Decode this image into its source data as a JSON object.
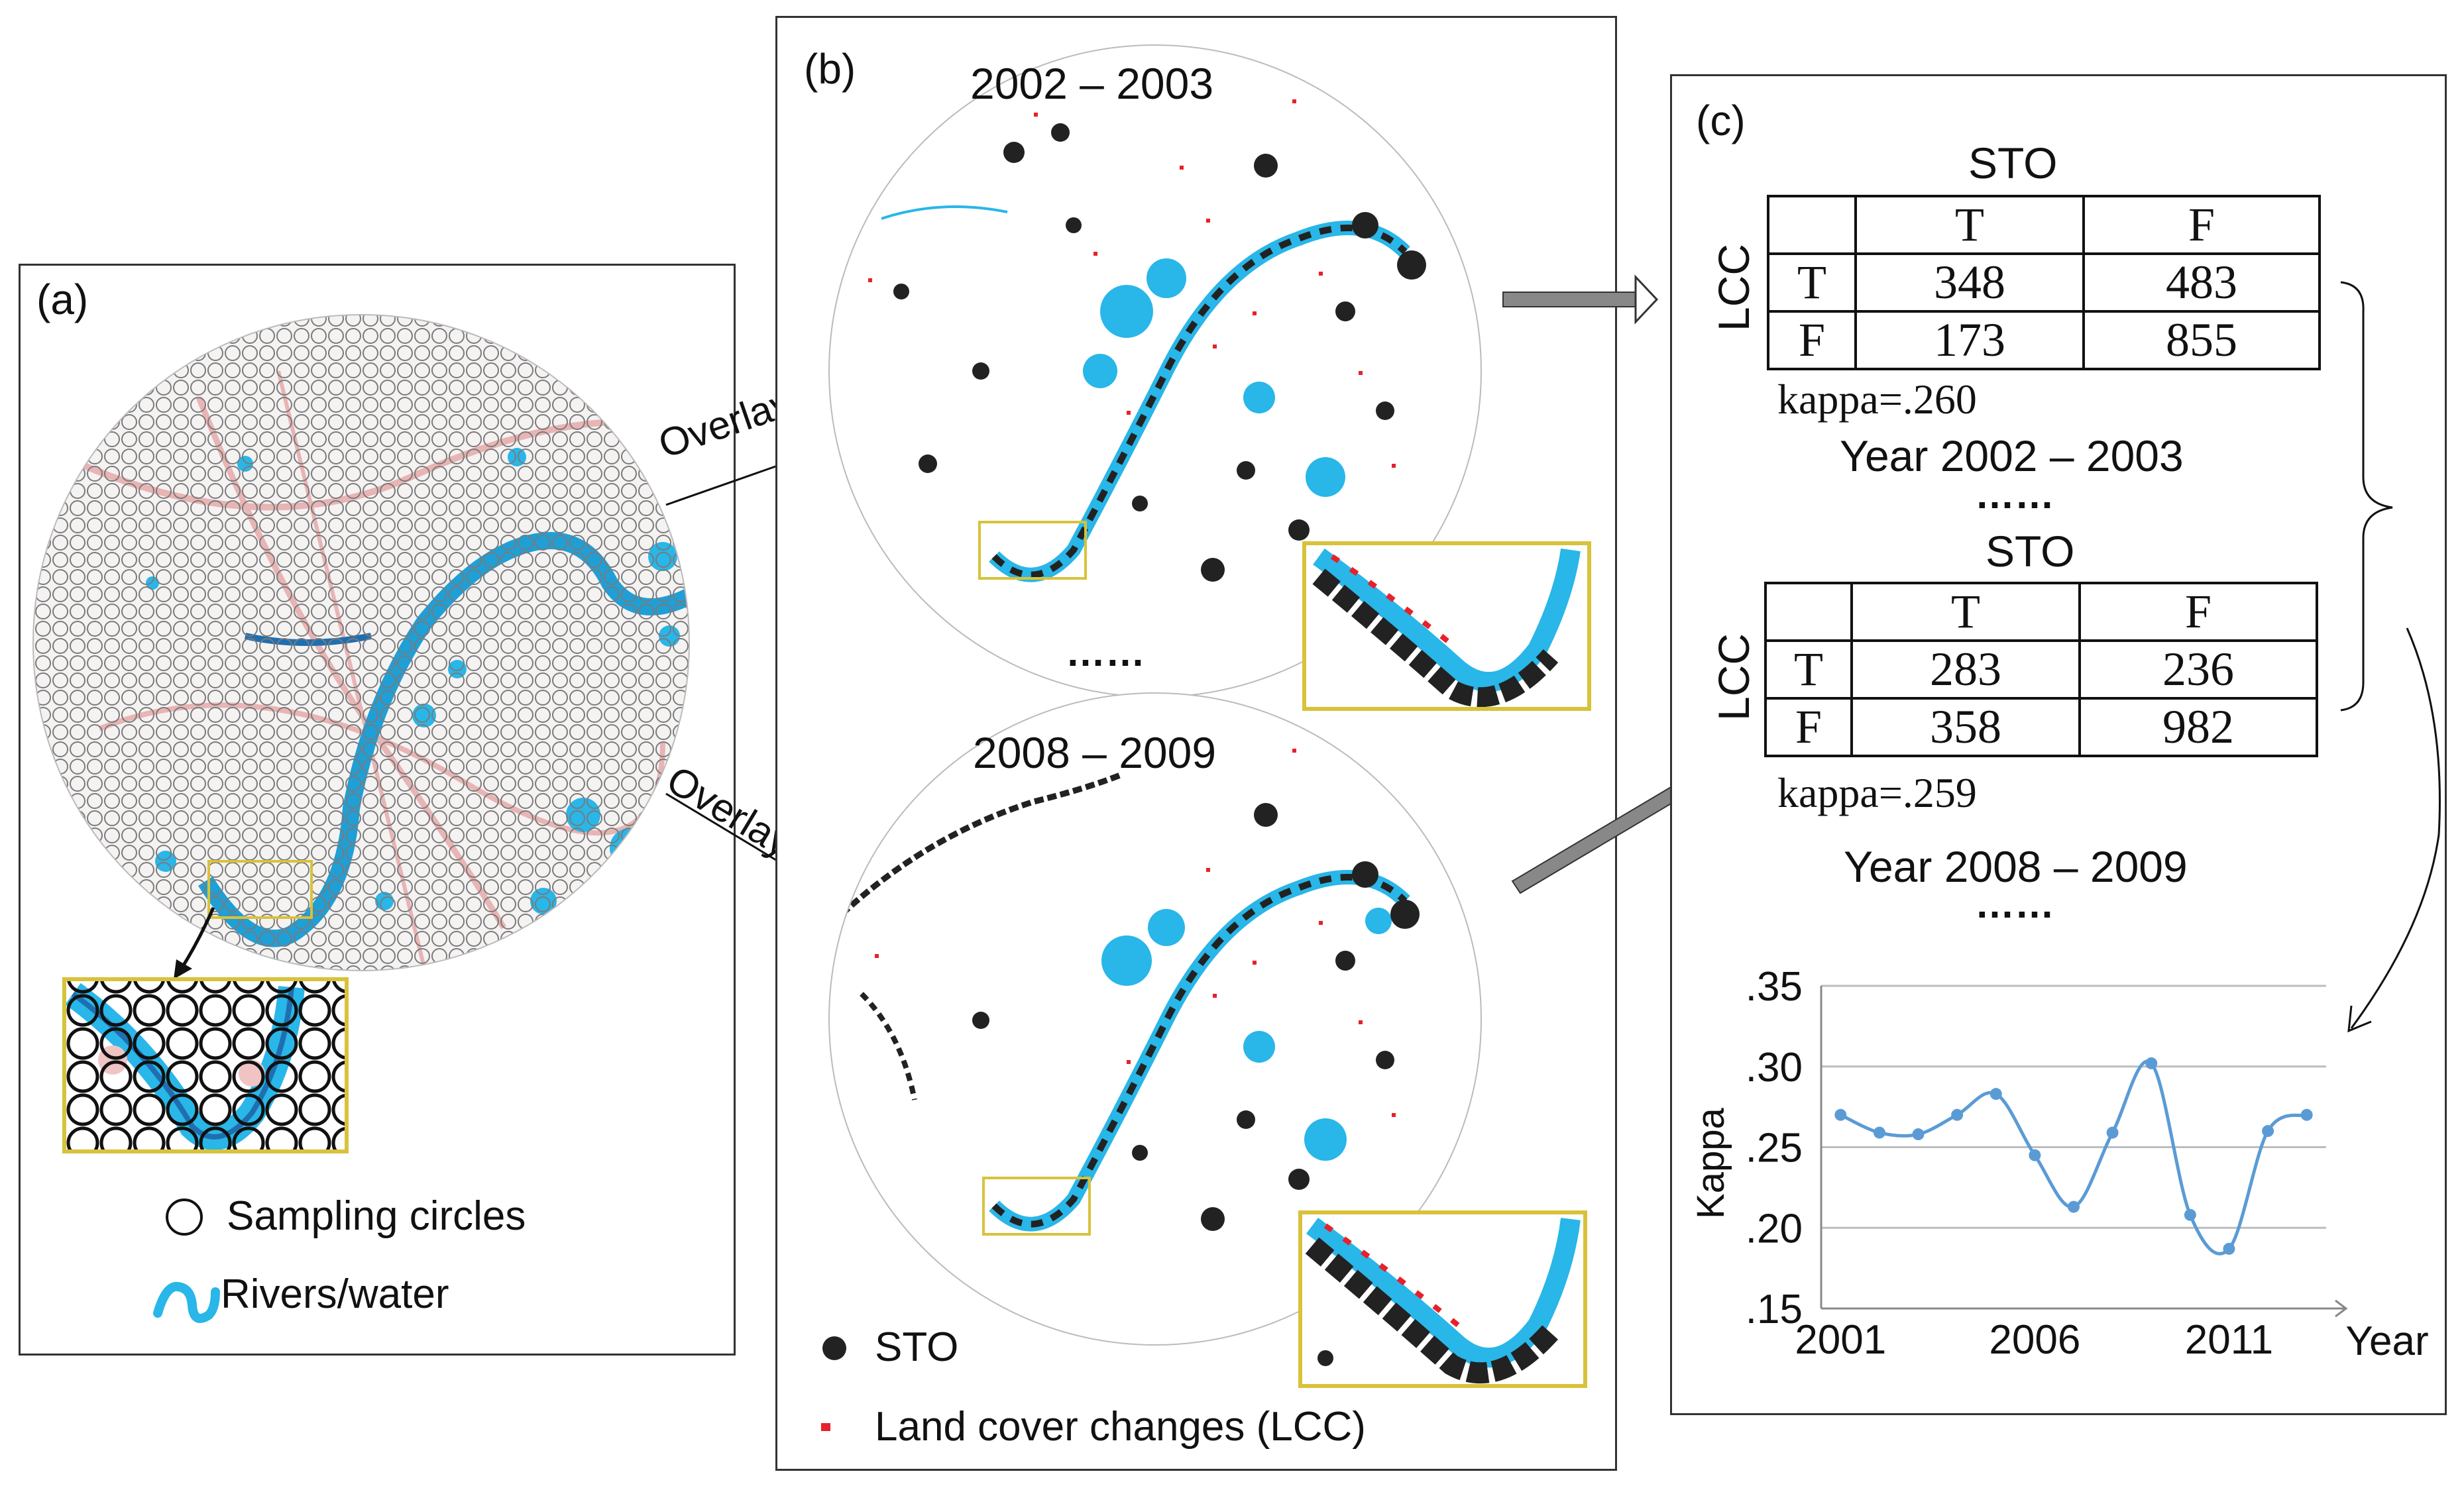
{
  "panel_a": {
    "label": "(a)",
    "legend": {
      "circles_label": "Sampling circles",
      "rivers_label": "Rivers/water"
    }
  },
  "overlay_label": "Overlay",
  "panel_b": {
    "label": "(b)",
    "map1_period": "2002 – 2003",
    "map2_period": "2008 – 2009",
    "ellipsis": "……",
    "legend": {
      "sto_label": "STO",
      "lcc_label": "Land cover changes (LCC)"
    }
  },
  "panel_c": {
    "label": "(c)",
    "table1": {
      "title": "STO",
      "row_axis": "LCC",
      "col_headers": [
        "T",
        "F"
      ],
      "rows": [
        {
          "label": "T",
          "values": [
            "348",
            "483"
          ]
        },
        {
          "label": "F",
          "values": [
            "173",
            "855"
          ]
        }
      ],
      "kappa": "kappa=.260",
      "year": "Year 2002 – 2003"
    },
    "ellipsis": "……",
    "table2": {
      "title": "STO",
      "row_axis": "LCC",
      "col_headers": [
        "T",
        "F"
      ],
      "rows": [
        {
          "label": "T",
          "values": [
            "283",
            "236"
          ]
        },
        {
          "label": "F",
          "values": [
            "358",
            "982"
          ]
        }
      ],
      "kappa": "kappa=.259",
      "year": "Year 2008 – 2009"
    }
  },
  "chart_data": {
    "type": "line",
    "title": "",
    "xlabel": "Year",
    "ylabel": "Kappa",
    "x": [
      2001,
      2002,
      2003,
      2004,
      2005,
      2006,
      2007,
      2008,
      2009,
      2010,
      2011,
      2012,
      2013
    ],
    "values": [
      0.27,
      0.259,
      0.258,
      0.27,
      0.283,
      0.245,
      0.213,
      0.259,
      0.302,
      0.208,
      0.187,
      0.26,
      0.27
    ],
    "ylim": [
      0.15,
      0.35
    ],
    "xlim": [
      2000.5,
      2013.5
    ],
    "yticks": [
      ".35",
      ".30",
      ".25",
      ".20",
      ".15"
    ],
    "ytick_values": [
      0.35,
      0.3,
      0.25,
      0.2,
      0.15
    ],
    "xticks": [
      "2001",
      "2006",
      "2011"
    ],
    "xtick_values": [
      2001,
      2006,
      2011
    ],
    "grid": true,
    "series_color": "#5b9bd5"
  },
  "colors": {
    "water": "#29b6e8",
    "lcc": "#e8202a",
    "sto": "#222222",
    "inset_border": "#d8c23a",
    "river_dark": "#1f6fb0"
  }
}
